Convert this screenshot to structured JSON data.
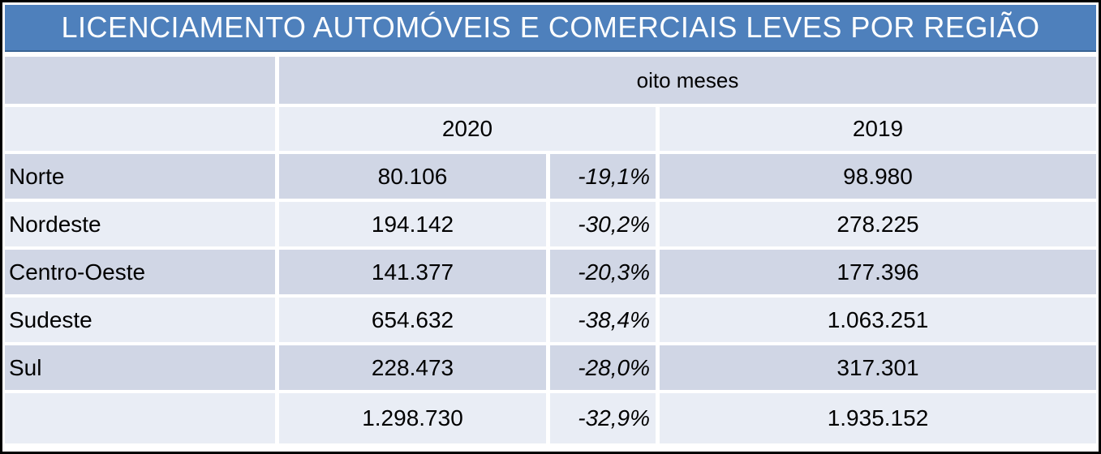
{
  "title": "LICENCIAMENTO AUTOMÓVEIS E COMERCIAIS LEVES POR REGIÃO",
  "table": {
    "group_header": "oito meses",
    "year_headers": [
      "2020",
      "2019"
    ],
    "rows": [
      {
        "region": "Norte",
        "v2020": "80.106",
        "pct": "-19,1%",
        "v2019": "98.980"
      },
      {
        "region": "Nordeste",
        "v2020": "194.142",
        "pct": "-30,2%",
        "v2019": "278.225"
      },
      {
        "region": "Centro-Oeste",
        "v2020": "141.377",
        "pct": "-20,3%",
        "v2019": "177.396"
      },
      {
        "region": "Sudeste",
        "v2020": "654.632",
        "pct": "-38,4%",
        "v2019": "1.063.251"
      },
      {
        "region": "Sul",
        "v2020": "228.473",
        "pct": "-28,0%",
        "v2019": "317.301"
      },
      {
        "region": "",
        "v2020": "1.298.730",
        "pct": "-32,9%",
        "v2019": "1.935.152"
      }
    ]
  },
  "colors": {
    "header_blue": "#4e80bc",
    "header_blue_border": "#3a6494",
    "band_dark": "#d0d6e5",
    "band_light": "#e9edf5",
    "title_text": "#ffffff",
    "body_text": "#000000",
    "outer_border": "#000000"
  },
  "chart_data": {
    "type": "table",
    "title": "LICENCIAMENTO AUTOMÓVEIS E COMERCIAIS LEVES POR REGIÃO",
    "period_header": "oito meses",
    "categories": [
      "Norte",
      "Nordeste",
      "Centro-Oeste",
      "Sudeste",
      "Sul",
      ""
    ],
    "series": [
      {
        "name": "2020",
        "values": [
          80106,
          194142,
          141377,
          654632,
          228473,
          1298730
        ]
      },
      {
        "name": "variation_pct",
        "values": [
          -19.1,
          -30.2,
          -20.3,
          -38.4,
          -28.0,
          -32.9
        ]
      },
      {
        "name": "2019",
        "values": [
          98980,
          278225,
          177396,
          1063251,
          317301,
          1935152
        ]
      }
    ],
    "layout": {
      "banded_rows": true,
      "header_band_color": "#4e80bc",
      "last_row_is_total": true
    }
  }
}
